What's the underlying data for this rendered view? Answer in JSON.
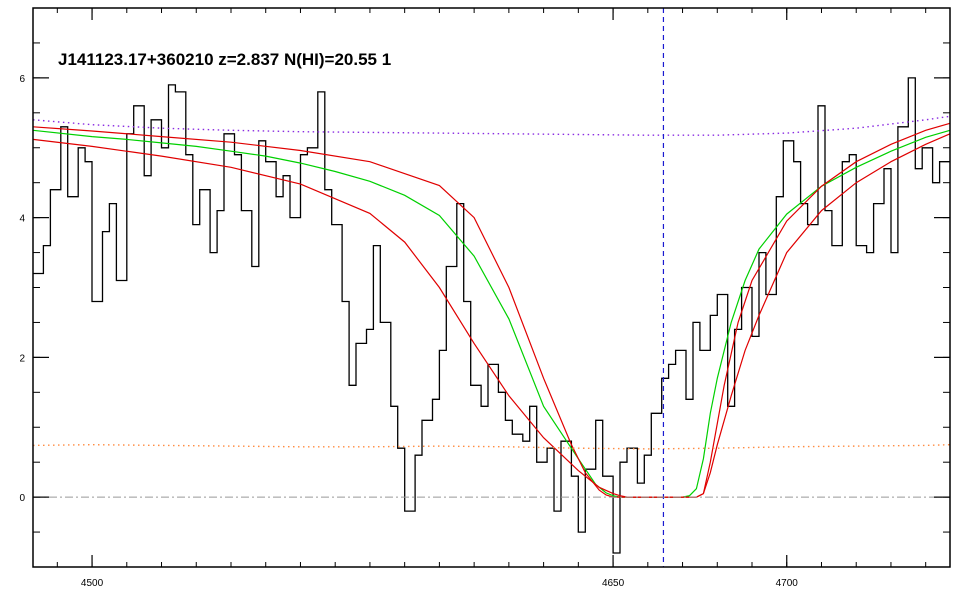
{
  "chart_data": {
    "type": "line",
    "title": "J141123.17+360210 z=2.837 N(HI)=20.55 1",
    "xlabel": "",
    "ylabel": "",
    "xlim": [
      4483,
      4747
    ],
    "ylim": [
      -1.0,
      7.0
    ],
    "x_ticks": [
      4500,
      4650,
      4700
    ],
    "x_tick_labels": [
      "4500",
      "4650",
      "4700"
    ],
    "y_ticks": [
      0,
      2,
      4,
      6
    ],
    "y_tick_labels": [
      "0",
      "2",
      "4",
      "6"
    ],
    "grid": false,
    "center_line_x": 4664.5,
    "zero_line_y": 0,
    "colors": {
      "flux": "#000000",
      "fit": "#00d000",
      "fit_bounds": "#e00000",
      "continuum": "#8a2be2",
      "error": "#ff8c42",
      "center_line": "#1a1ad0",
      "zero_line": "#999999"
    },
    "series": [
      {
        "style": "step",
        "x": [
          4483,
          4486,
          4488,
          4491,
          4493,
          4496,
          4498,
          4500,
          4503,
          4505,
          4507,
          4510,
          4512,
          4515,
          4517,
          4520,
          4522,
          4524,
          4527,
          4529,
          4531,
          4534,
          4536,
          4538,
          4541,
          4543,
          4546,
          4548,
          4550,
          4553,
          4555,
          4557,
          4560,
          4562,
          4565,
          4567,
          4569,
          4572,
          4574,
          4576,
          4579,
          4581,
          4583,
          4586,
          4588,
          4590,
          4593,
          4595,
          4598,
          4600,
          4602,
          4605,
          4607,
          4609,
          4612,
          4614,
          4617,
          4619,
          4621,
          4624,
          4626,
          4628,
          4631,
          4633,
          4635,
          4638,
          4640,
          4642,
          4645,
          4647,
          4650,
          4652,
          4654,
          4657,
          4659,
          4661,
          4664,
          4666,
          4668,
          4671,
          4673,
          4675,
          4678,
          4680,
          4683,
          4685,
          4687,
          4690,
          4692,
          4694,
          4697,
          4699,
          4702,
          4704,
          4706,
          4709,
          4711,
          4713,
          4716,
          4718,
          4720,
          4723,
          4725,
          4728,
          4730,
          4732,
          4735,
          4737,
          4739,
          4742,
          4744,
          4747
        ],
        "y": [
          3.2,
          3.6,
          4.4,
          5.3,
          4.3,
          5.0,
          4.8,
          2.8,
          3.8,
          4.2,
          3.1,
          5.2,
          5.6,
          4.6,
          5.4,
          5.0,
          5.9,
          5.8,
          4.9,
          3.9,
          4.4,
          3.5,
          4.1,
          5.2,
          4.9,
          4.1,
          3.3,
          5.1,
          4.8,
          4.3,
          4.6,
          4.0,
          4.9,
          5.0,
          5.8,
          4.4,
          3.9,
          2.8,
          1.6,
          2.2,
          2.4,
          3.6,
          2.5,
          1.3,
          0.7,
          -0.2,
          0.6,
          1.1,
          1.4,
          2.1,
          3.3,
          4.2,
          2.8,
          1.6,
          1.3,
          1.9,
          1.5,
          1.1,
          0.9,
          0.8,
          1.3,
          0.5,
          0.7,
          -0.2,
          0.8,
          0.3,
          -0.5,
          0.4,
          1.1,
          0.3,
          -0.8,
          0.5,
          0.7,
          0.2,
          0.6,
          1.2,
          1.7,
          1.9,
          2.1,
          1.4,
          2.5,
          2.1,
          2.6,
          2.9,
          1.3,
          2.4,
          3.0,
          2.3,
          3.5,
          2.9,
          4.3,
          5.1,
          4.8,
          4.2,
          3.9,
          5.6,
          4.1,
          3.6,
          4.8,
          4.9,
          3.6,
          3.5,
          4.2,
          4.7,
          3.5,
          5.3,
          6.0,
          4.7,
          5.0,
          4.5,
          4.8,
          5.3
        ],
        "color": "flux"
      },
      {
        "style": "line",
        "x": [
          4483,
          4500,
          4510,
          4520,
          4530,
          4540,
          4550,
          4560,
          4570,
          4580,
          4590,
          4600,
          4610,
          4620,
          4630,
          4640,
          4645,
          4648,
          4650,
          4652,
          4654,
          4656,
          4658,
          4660,
          4662,
          4664,
          4666,
          4668,
          4670,
          4672,
          4674,
          4676,
          4678,
          4680,
          4684,
          4688,
          4692,
          4700,
          4710,
          4720,
          4730,
          4740,
          4747
        ],
        "y": [
          5.25,
          5.16,
          5.12,
          5.07,
          5.02,
          4.95,
          4.88,
          4.78,
          4.66,
          4.52,
          4.32,
          4.03,
          3.45,
          2.55,
          1.3,
          0.55,
          0.18,
          0.06,
          0.02,
          0.0,
          0.0,
          0.0,
          0.0,
          0.0,
          0.0,
          0.0,
          0.0,
          0.0,
          0.0,
          0.02,
          0.12,
          0.55,
          1.2,
          1.7,
          2.5,
          3.1,
          3.55,
          4.05,
          4.45,
          4.72,
          4.95,
          5.15,
          5.25
        ],
        "color": "fit"
      },
      {
        "style": "line",
        "x": [
          4483,
          4500,
          4520,
          4540,
          4560,
          4580,
          4600,
          4610,
          4620,
          4630,
          4638,
          4642,
          4646,
          4648,
          4650,
          4652,
          4654,
          4656,
          4658,
          4660,
          4662,
          4664,
          4666,
          4668,
          4670,
          4672,
          4674,
          4676,
          4678,
          4682,
          4686,
          4690,
          4700,
          4710,
          4720,
          4730,
          4740,
          4747
        ],
        "y": [
          5.3,
          5.24,
          5.16,
          5.08,
          4.96,
          4.8,
          4.46,
          4.0,
          3.0,
          1.7,
          0.75,
          0.35,
          0.1,
          0.03,
          0.0,
          0.0,
          0.0,
          0.0,
          0.0,
          0.0,
          0.0,
          0.0,
          0.0,
          0.0,
          0.0,
          0.0,
          0.0,
          0.05,
          0.5,
          1.6,
          2.5,
          3.1,
          3.95,
          4.45,
          4.8,
          5.05,
          5.25,
          5.35
        ],
        "color": "fit_bounds"
      },
      {
        "style": "line",
        "x": [
          4483,
          4500,
          4520,
          4540,
          4560,
          4580,
          4590,
          4600,
          4610,
          4620,
          4630,
          4640,
          4646,
          4650,
          4652,
          4654,
          4656,
          4658,
          4660,
          4662,
          4664,
          4666,
          4668,
          4670,
          4672,
          4674,
          4676,
          4678,
          4680,
          4684,
          4688,
          4692,
          4700,
          4710,
          4720,
          4730,
          4740,
          4747
        ],
        "y": [
          5.12,
          5.02,
          4.88,
          4.72,
          4.48,
          4.06,
          3.65,
          3.0,
          2.2,
          1.45,
          0.85,
          0.38,
          0.14,
          0.05,
          0.02,
          0.0,
          0.0,
          0.0,
          0.0,
          0.0,
          0.0,
          0.0,
          0.0,
          0.0,
          0.0,
          0.0,
          0.05,
          0.35,
          0.75,
          1.45,
          2.1,
          2.6,
          3.5,
          4.1,
          4.5,
          4.8,
          5.05,
          5.2
        ],
        "color": "fit_bounds"
      },
      {
        "style": "dotted",
        "x": [
          4483,
          4500,
          4520,
          4540,
          4560,
          4580,
          4600,
          4620,
          4640,
          4660,
          4680,
          4700,
          4720,
          4740,
          4747
        ],
        "y": [
          5.4,
          5.33,
          5.28,
          5.25,
          5.23,
          5.22,
          5.21,
          5.2,
          5.19,
          5.18,
          5.18,
          5.21,
          5.28,
          5.4,
          5.45
        ],
        "color": "continuum"
      },
      {
        "style": "dotted",
        "x": [
          4483,
          4500,
          4520,
          4540,
          4560,
          4580,
          4600,
          4620,
          4640,
          4660,
          4680,
          4700,
          4720,
          4740,
          4747
        ],
        "y": [
          0.74,
          0.75,
          0.74,
          0.73,
          0.72,
          0.72,
          0.73,
          0.72,
          0.7,
          0.69,
          0.7,
          0.72,
          0.73,
          0.74,
          0.75
        ],
        "color": "error"
      }
    ]
  }
}
